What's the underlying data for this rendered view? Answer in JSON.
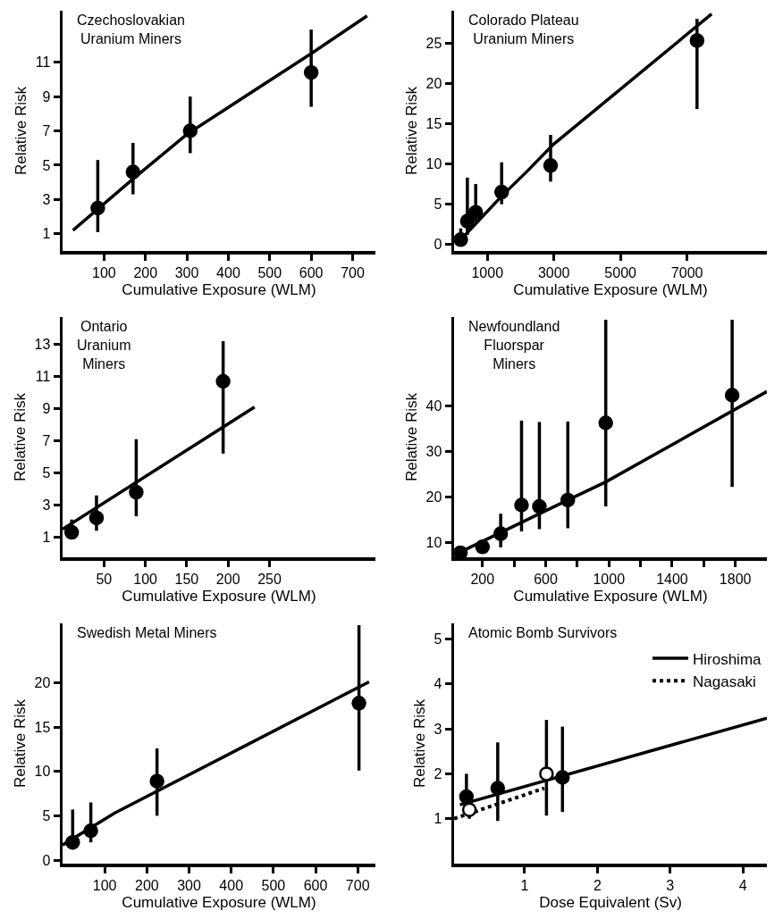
{
  "chart_data": [
    {
      "type": "scatter",
      "title": "Czechoslovakian\nUranium Miners",
      "xlabel": "Cumulative Exposure (WLM)",
      "ylabel": "Relative Risk",
      "xlim": [
        0,
        755
      ],
      "ylim": [
        0,
        14
      ],
      "xticks": [
        100,
        200,
        300,
        400,
        500,
        600,
        700
      ],
      "yticks": [
        1,
        3,
        5,
        7,
        9,
        11
      ],
      "grid": false,
      "legend": false,
      "series": [
        {
          "marker": "circle",
          "color": "#000000",
          "x": [
            85,
            170,
            308,
            600
          ],
          "values": [
            2.5,
            4.6,
            7.0,
            10.4
          ],
          "errors": [
            [
              1.1,
              5.3
            ],
            [
              3.3,
              6.3
            ],
            [
              5.7,
              9.0
            ],
            [
              8.4,
              12.9
            ]
          ]
        },
        {
          "type": "line",
          "marker": "none",
          "color": "#000000",
          "line_style": "solid",
          "x": [
            25,
            170,
            300,
            600,
            735
          ],
          "values": [
            1.2,
            4.2,
            6.8,
            11.5,
            13.7
          ]
        }
      ]
    },
    {
      "type": "scatter",
      "title": "Colorado Plateau\nUranium Miners",
      "xlabel": "Cumulative Exposure (WLM)",
      "ylabel": "Relative Risk",
      "xlim": [
        0,
        9400
      ],
      "ylim": [
        -0.8,
        29
      ],
      "xticks": [
        1000,
        3000,
        5000,
        7000
      ],
      "yticks": [
        0,
        5,
        10,
        15,
        20,
        25
      ],
      "grid": false,
      "legend": false,
      "series": [
        {
          "marker": "circle",
          "color": "#000000",
          "x": [
            200,
            400,
            650,
            1430,
            2900,
            7300
          ],
          "values": [
            0.6,
            2.9,
            4.0,
            6.5,
            9.8,
            25.3
          ],
          "errors": [
            [
              0,
              2
            ],
            [
              1.2,
              8.3
            ],
            [
              2.8,
              7.5
            ],
            [
              5.0,
              10.2
            ],
            [
              7.8,
              13.6
            ],
            [
              16.8,
              28
            ]
          ]
        },
        {
          "type": "line",
          "marker": "none",
          "color": "#000000",
          "line_style": "solid",
          "x": [
            110,
            1430,
            2200,
            2980,
            7740
          ],
          "values": [
            0.2,
            6.0,
            9.1,
            12.4,
            28.6
          ]
        }
      ]
    },
    {
      "type": "scatter",
      "title": "Ontario\nUranium\nMiners",
      "xlabel": "Cumulative Exposure (WLM)",
      "ylabel": "Relative Risk",
      "xlim": [
        0,
        378
      ],
      "ylim": [
        -0.25,
        14.7
      ],
      "xticks": [
        50,
        100,
        150,
        200,
        250
      ],
      "yticks": [
        1,
        3,
        5,
        7,
        9,
        11,
        13
      ],
      "grid": false,
      "legend": false,
      "series": [
        {
          "marker": "circle",
          "color": "#000000",
          "x": [
            11,
            41,
            89,
            194
          ],
          "values": [
            1.3,
            2.2,
            3.8,
            10.7
          ],
          "errors": [
            [
              0.9,
              2.1
            ],
            [
              1.4,
              3.6
            ],
            [
              2.3,
              7.1
            ],
            [
              6.2,
              13.2
            ]
          ]
        },
        {
          "type": "line",
          "marker": "none",
          "color": "#000000",
          "line_style": "solid",
          "x": [
            0,
            232
          ],
          "values": [
            1.5,
            9.1
          ]
        }
      ]
    },
    {
      "type": "scatter",
      "title": "Newfoundland\nFluorspar\nMiners",
      "xlabel": "Cumulative Exposure (WLM)",
      "ylabel": "Relative Risk",
      "xlim": [
        20,
        2000
      ],
      "ylim": [
        6.7,
        59.6
      ],
      "xticks": [
        200,
        {
          "value": 400,
          "label": null
        },
        600,
        {
          "value": 800,
          "label": null
        },
        1000,
        {
          "value": 1200,
          "label": null
        },
        1400,
        {
          "value": 1600,
          "label": null
        },
        1800
      ],
      "yticks": [
        10,
        20,
        30,
        40
      ],
      "grid": false,
      "legend": false,
      "series": [
        {
          "marker": "circle",
          "color": "#000000",
          "x": [
            60,
            200,
            315,
            447,
            560,
            740,
            980,
            1780
          ],
          "values": [
            7.7,
            9.0,
            11.9,
            18.2,
            17.9,
            19.3,
            36.3,
            42.4
          ],
          "errors": [
            null,
            null,
            [
              8.9,
              16.3
            ],
            [
              12.4,
              36.8
            ],
            [
              12.9,
              36.5
            ],
            [
              13.1,
              36.6
            ],
            [
              17.9,
              59
            ],
            [
              22.2,
              59
            ]
          ]
        },
        {
          "type": "line",
          "marker": "none",
          "color": "#000000",
          "line_style": "solid",
          "x": [
            80,
            740,
            980,
            2000
          ],
          "values": [
            8.2,
            19.3,
            23.3,
            43.2
          ]
        }
      ]
    },
    {
      "type": "scatter",
      "title": "Swedish Metal Miners",
      "xlabel": "Cumulative Exposure (WLM)",
      "ylabel": "Relative Risk",
      "xlim": [
        0,
        742
      ],
      "ylim": [
        -0.4,
        26.7
      ],
      "xticks": [
        100,
        200,
        300,
        400,
        500,
        600,
        700
      ],
      "yticks": [
        0,
        5,
        10,
        15,
        20
      ],
      "grid": false,
      "legend": false,
      "series": [
        {
          "marker": "circle",
          "color": "#000000",
          "x": [
            24,
            67,
            224,
            703
          ],
          "values": [
            2.0,
            3.3,
            8.9,
            17.7
          ],
          "errors": [
            [
              1.2,
              5.7
            ],
            [
              2.0,
              6.5
            ],
            [
              5.0,
              12.6
            ],
            [
              10.1,
              26.5
            ]
          ]
        },
        {
          "type": "line",
          "marker": "none",
          "color": "#000000",
          "line_style": "solid",
          "x": [
            0,
            123,
            727
          ],
          "values": [
            1.7,
            5.3,
            20.1
          ]
        }
      ]
    },
    {
      "type": "scatter",
      "title": "Atomic Bomb Survivors",
      "xlabel": "Dose Equivalent (Sv)",
      "ylabel": "Relative Risk",
      "xlim": [
        0.03,
        4.33
      ],
      "ylim": [
        0,
        5.35
      ],
      "xticks": [
        1,
        2,
        3,
        4
      ],
      "yticks": [
        1,
        2,
        3,
        4,
        5
      ],
      "grid": false,
      "legend": "top right",
      "series": [
        {
          "type": "line",
          "marker": "none",
          "name": "Hiroshima",
          "color": "#000000",
          "line_style": "solid",
          "x": [
            0.11,
            4.33
          ],
          "values": [
            1.31,
            3.24
          ]
        },
        {
          "type": "line",
          "marker": "none",
          "name": "Nagasaki",
          "color": "#000000",
          "line_style": "dotted",
          "x": [
            0.03,
            1.27
          ],
          "values": [
            1.0,
            1.68
          ]
        },
        {
          "marker": "circle",
          "color": "#000000",
          "x": [
            0.2,
            0.63,
            1.52
          ],
          "values": [
            1.49,
            1.68,
            1.92
          ],
          "errors": [
            [
              1.2,
              2.0
            ],
            [
              0.95,
              2.7
            ],
            [
              1.15,
              3.05
            ]
          ]
        },
        {
          "marker": "circle",
          "color": "#ffffff",
          "x": [
            0.24,
            1.3
          ],
          "values": [
            1.2,
            2.0
          ],
          "errors": [
            [
              1.0,
              1.3
            ],
            [
              1.07,
              3.2
            ]
          ]
        }
      ]
    }
  ]
}
